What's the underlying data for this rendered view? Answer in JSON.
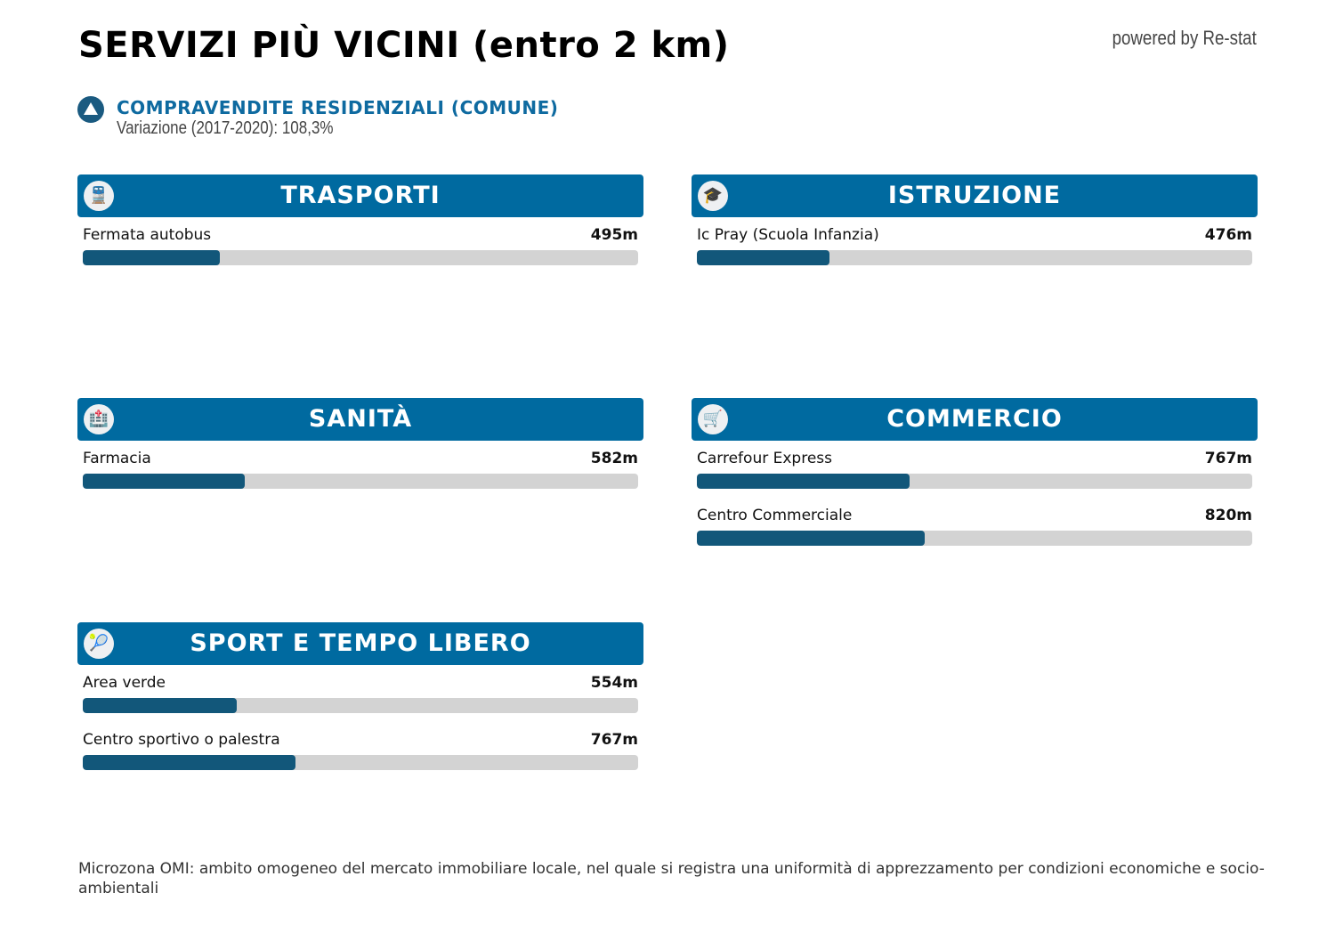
{
  "title": "SERVIZI PIÙ VICINI (entro 2 km)",
  "powered": "powered by Re-stat",
  "kpi": {
    "icon": "triangle-up-icon",
    "title": "COMPRAVENDITE RESIDENZIALI (COMUNE)",
    "subtitle": "Variazione (2017-2020): 108,3%"
  },
  "max_distance_m": 2000,
  "panels": [
    {
      "title": "TRASPORTI",
      "icon": "train-icon",
      "glyph": "🚆",
      "items": [
        {
          "label": "Fermata autobus",
          "value": "495m",
          "meters": 495
        }
      ]
    },
    {
      "title": "ISTRUZIONE",
      "icon": "student-icon",
      "glyph": "🎓",
      "items": [
        {
          "label": "Ic Pray (Scuola Infanzia)",
          "value": "476m",
          "meters": 476
        }
      ]
    },
    {
      "title": "SANITÀ",
      "icon": "hospital-icon",
      "glyph": "🏥",
      "items": [
        {
          "label": "Farmacia",
          "value": "582m",
          "meters": 582
        }
      ]
    },
    {
      "title": "COMMERCIO",
      "icon": "cart-icon",
      "glyph": "🛒",
      "items": [
        {
          "label": "Carrefour Express",
          "value": "767m",
          "meters": 767
        },
        {
          "label": "Centro Commerciale",
          "value": "820m",
          "meters": 820
        }
      ]
    },
    {
      "title": "SPORT E TEMPO LIBERO",
      "icon": "tennis-racket-icon",
      "glyph": "🎾",
      "items": [
        {
          "label": "Area verde",
          "value": "554m",
          "meters": 554
        },
        {
          "label": "Centro sportivo o palestra",
          "value": "767m",
          "meters": 767
        }
      ]
    }
  ],
  "footnote": "Microzona OMI: ambito omogeneo del mercato immobiliare locale, nel quale si registra una uniformità di apprezzamento per condizioni economiche e socio-ambientali",
  "colors": {
    "header": "#006aa0",
    "bar": "#12577a",
    "track": "#d3d3d3",
    "accent": "#0e6aa0"
  }
}
